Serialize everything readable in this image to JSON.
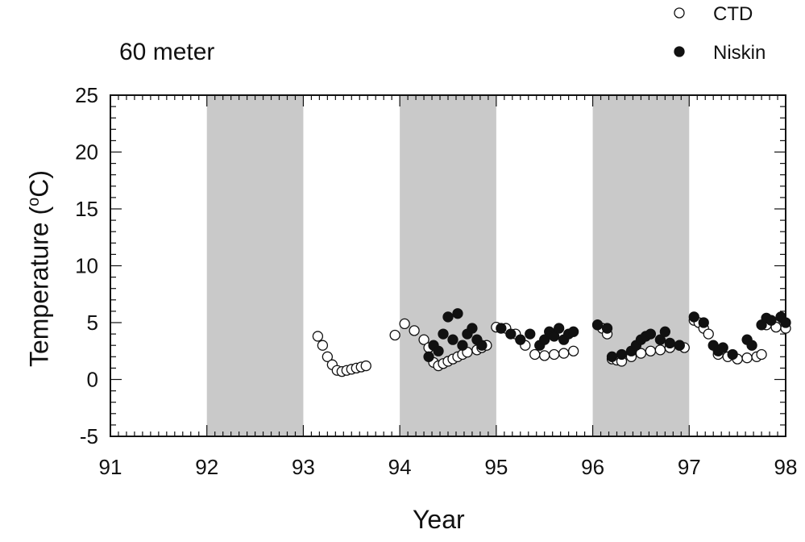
{
  "chart_data": {
    "type": "scatter",
    "title": "60 meter",
    "xlabel": "Year",
    "ylabel_main": "Temperature (",
    "ylabel_sup": "o",
    "ylabel_end": "C)",
    "xlim": [
      91,
      98
    ],
    "ylim": [
      -5,
      25
    ],
    "xticks": [
      91,
      92,
      93,
      94,
      95,
      96,
      97,
      98
    ],
    "yticks": [
      -5,
      0,
      5,
      10,
      15,
      20,
      25
    ],
    "shaded_bands": [
      [
        92,
        93
      ],
      [
        94,
        95
      ],
      [
        96,
        97
      ]
    ],
    "legend": {
      "position": "top-right",
      "entries": [
        "CTD",
        "Niskin"
      ]
    },
    "series": [
      {
        "name": "CTD",
        "marker": "open-circle",
        "x": [
          93.15,
          93.2,
          93.25,
          93.3,
          93.35,
          93.4,
          93.45,
          93.5,
          93.55,
          93.6,
          93.65,
          93.95,
          94.05,
          94.15,
          94.25,
          94.3,
          94.35,
          94.4,
          94.45,
          94.5,
          94.55,
          94.6,
          94.65,
          94.7,
          94.8,
          94.85,
          94.9,
          95.0,
          95.1,
          95.2,
          95.3,
          95.4,
          95.5,
          95.6,
          95.7,
          95.8,
          96.05,
          96.1,
          96.15,
          96.2,
          96.25,
          96.3,
          96.4,
          96.5,
          96.6,
          96.7,
          96.8,
          96.9,
          96.95,
          97.05,
          97.1,
          97.15,
          97.2,
          97.3,
          97.4,
          97.5,
          97.6,
          97.7,
          97.75,
          97.8,
          97.9,
          98.0
        ],
        "y": [
          3.8,
          3.0,
          2.0,
          1.3,
          0.8,
          0.7,
          0.8,
          0.9,
          1.0,
          1.1,
          1.2,
          3.9,
          4.9,
          4.3,
          3.5,
          2.8,
          1.5,
          1.2,
          1.4,
          1.6,
          1.8,
          2.0,
          2.2,
          2.4,
          2.6,
          2.8,
          3.0,
          4.6,
          4.5,
          4.0,
          3.0,
          2.2,
          2.1,
          2.2,
          2.3,
          2.5,
          4.8,
          4.5,
          4.0,
          1.8,
          1.7,
          1.6,
          2.0,
          2.3,
          2.5,
          2.6,
          2.8,
          3.0,
          2.8,
          5.2,
          5.0,
          4.5,
          4.0,
          2.2,
          2.0,
          1.8,
          1.9,
          2.0,
          2.2,
          4.8,
          4.6,
          4.5
        ]
      },
      {
        "name": "Niskin",
        "marker": "filled-circle",
        "x": [
          94.3,
          94.35,
          94.4,
          94.45,
          94.5,
          94.55,
          94.6,
          94.65,
          94.7,
          94.75,
          94.8,
          94.85,
          95.05,
          95.15,
          95.25,
          95.35,
          95.45,
          95.5,
          95.55,
          95.6,
          95.65,
          95.7,
          95.75,
          95.8,
          96.05,
          96.15,
          96.2,
          96.3,
          96.4,
          96.45,
          96.5,
          96.55,
          96.6,
          96.7,
          96.75,
          96.8,
          96.9,
          97.05,
          97.15,
          97.25,
          97.3,
          97.35,
          97.45,
          97.6,
          97.65,
          97.75,
          97.8,
          97.85,
          97.95,
          98.0
        ],
        "y": [
          2.0,
          3.0,
          2.5,
          4.0,
          5.5,
          3.5,
          5.8,
          3.0,
          4.0,
          4.5,
          3.5,
          3.0,
          4.5,
          4.0,
          3.5,
          4.0,
          3.0,
          3.5,
          4.2,
          3.8,
          4.5,
          3.5,
          4.0,
          4.2,
          4.8,
          4.5,
          2.0,
          2.2,
          2.5,
          3.0,
          3.5,
          3.8,
          4.0,
          3.5,
          4.2,
          3.2,
          3.0,
          5.5,
          5.0,
          3.0,
          2.5,
          2.8,
          2.2,
          3.5,
          3.0,
          4.8,
          5.4,
          5.2,
          5.5,
          5.0
        ]
      }
    ]
  }
}
